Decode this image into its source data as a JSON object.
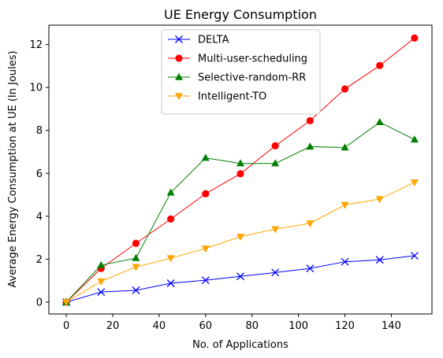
{
  "chart_data": {
    "type": "line",
    "title": "UE Energy Consumption",
    "xlabel": "No. of Applications",
    "ylabel": "Average Energy Consumption at UE (In Joules)",
    "x": [
      0,
      15,
      30,
      45,
      60,
      75,
      90,
      105,
      120,
      135,
      150
    ],
    "xlim": [
      -7.5,
      157.5
    ],
    "ylim": [
      -0.55,
      12.9
    ],
    "xticks": [
      0,
      20,
      40,
      60,
      80,
      100,
      120,
      140
    ],
    "yticks": [
      0,
      2,
      4,
      6,
      8,
      10,
      12
    ],
    "grid": false,
    "legend_position": "top-center",
    "series": [
      {
        "name": "DELTA",
        "color": "#0000ff",
        "marker": "x",
        "values": [
          0.0,
          0.47,
          0.55,
          0.88,
          1.02,
          1.2,
          1.38,
          1.57,
          1.88,
          1.97,
          2.16
        ]
      },
      {
        "name": "Multi-user-scheduling",
        "color": "#ff0000",
        "marker": "circle",
        "values": [
          0.0,
          1.57,
          2.74,
          3.87,
          5.05,
          5.98,
          7.28,
          8.45,
          9.93,
          11.02,
          12.3
        ]
      },
      {
        "name": "Selective-random-RR",
        "color": "#008000",
        "marker": "triangle-up",
        "values": [
          0.0,
          1.72,
          2.05,
          5.1,
          6.72,
          6.46,
          6.46,
          7.24,
          7.2,
          8.38,
          7.57
        ]
      },
      {
        "name": "Intelligent-TO",
        "color": "#ffa500",
        "marker": "triangle-down",
        "values": [
          0.0,
          0.97,
          1.64,
          2.05,
          2.5,
          3.05,
          3.4,
          3.67,
          4.53,
          4.8,
          5.58
        ]
      }
    ]
  }
}
